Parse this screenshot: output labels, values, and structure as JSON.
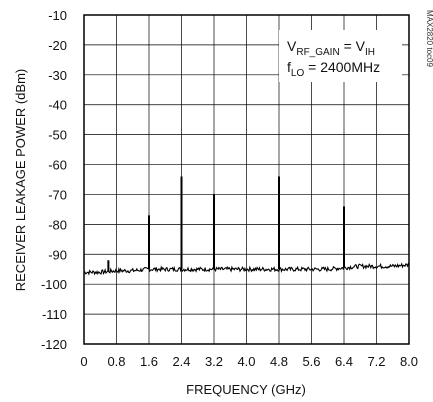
{
  "chart_data": {
    "type": "line",
    "xlabel": "FREQUENCY (GHz)",
    "ylabel": "RECEIVER LEAKAGE POWER (dBm)",
    "xlim": [
      0,
      8.0
    ],
    "ylim": [
      -120,
      -10
    ],
    "x_ticks": [
      "0",
      "0.8",
      "1.6",
      "2.4",
      "3.2",
      "4.0",
      "4.8",
      "5.6",
      "6.4",
      "7.2",
      "8.0"
    ],
    "y_ticks": [
      "-10",
      "-20",
      "-30",
      "-40",
      "-50",
      "-60",
      "-70",
      "-80",
      "-90",
      "-100",
      "-110",
      "-120"
    ],
    "grid": true,
    "noise_floor": {
      "x": [
        0,
        0.4,
        0.8,
        1.2,
        1.6,
        2.0,
        2.4,
        2.8,
        3.2,
        3.6,
        4.0,
        4.4,
        4.8,
        5.2,
        5.6,
        6.0,
        6.4,
        6.8,
        7.2,
        7.6,
        8.0
      ],
      "y": [
        -96,
        -96,
        -95.5,
        -95.5,
        -95,
        -95,
        -95,
        -95,
        -95,
        -95,
        -95,
        -95,
        -95,
        -95,
        -95,
        -95,
        -94.5,
        -94,
        -94,
        -94,
        -93.5
      ]
    },
    "spurs": [
      {
        "x": 0.6,
        "y": -92
      },
      {
        "x": 1.6,
        "y": -77
      },
      {
        "x": 2.4,
        "y": -64
      },
      {
        "x": 3.2,
        "y": -70
      },
      {
        "x": 4.8,
        "y": -64
      },
      {
        "x": 6.4,
        "y": -74
      }
    ],
    "annotation": {
      "line1_main": "V",
      "line1_sub": "RF_GAIN",
      "line1_mid": " = V",
      "line1_sub2": "IH",
      "line2_main": "f",
      "line2_sub": "LO",
      "line2_rest": " = 2400MHz"
    },
    "figure_code": "MAX2820 toc09",
    "line_color": "#000000",
    "grid_color": "#000000"
  }
}
